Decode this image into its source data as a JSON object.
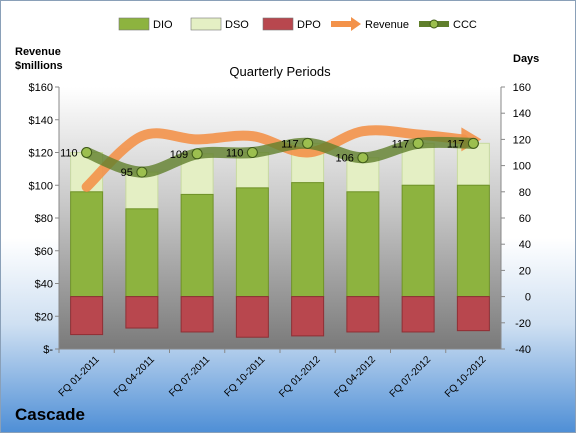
{
  "chart_data": {
    "type": "bar",
    "title": "Quarterly Periods",
    "company": "Cascade",
    "left_axis_label_line1": "Revenue",
    "left_axis_label_line2": "$millions",
    "right_axis_label": "Days",
    "categories": [
      "FQ 01-2011",
      "FQ 04-2011",
      "FQ 07-2011",
      "FQ 10-2011",
      "FQ 01-2012",
      "FQ 04-2012",
      "FQ 07-2012",
      "FQ 10-2012"
    ],
    "left_ticks": [
      "$-",
      "$20",
      "$40",
      "$60",
      "$80",
      "$100",
      "$120",
      "$140",
      "$160"
    ],
    "right_ticks": [
      "-40",
      "-20",
      "0",
      "20",
      "40",
      "60",
      "80",
      "100",
      "120",
      "140",
      "160"
    ],
    "ylim_left": [
      0,
      160
    ],
    "ylim_right": [
      -40,
      160
    ],
    "series": [
      {
        "name": "DIO",
        "axis": "right",
        "values": [
          80,
          67,
          78,
          83,
          87,
          80,
          85,
          85
        ],
        "color": "#8db33f"
      },
      {
        "name": "DSO",
        "axis": "right",
        "values": [
          30,
          28,
          31,
          27,
          30,
          26,
          32,
          32
        ],
        "color": "#e4efc4"
      },
      {
        "name": "DPO",
        "axis": "right",
        "values": [
          -29,
          -24,
          -27,
          -31,
          -30,
          -27,
          -27,
          -26
        ],
        "color": "#b8474e"
      },
      {
        "name": "Revenue",
        "axis": "left",
        "values": [
          99,
          130,
          128,
          130,
          120,
          133,
          131,
          128
        ],
        "color": "#f3924a"
      },
      {
        "name": "CCC",
        "axis": "right",
        "values": [
          110,
          95,
          109,
          110,
          117,
          106,
          117,
          117
        ],
        "color": "#607f2c"
      }
    ],
    "data_labels": [
      "110",
      "95",
      "109",
      "110",
      "117",
      "106",
      "117",
      "117"
    ],
    "legend_position": "top",
    "grid": false
  }
}
